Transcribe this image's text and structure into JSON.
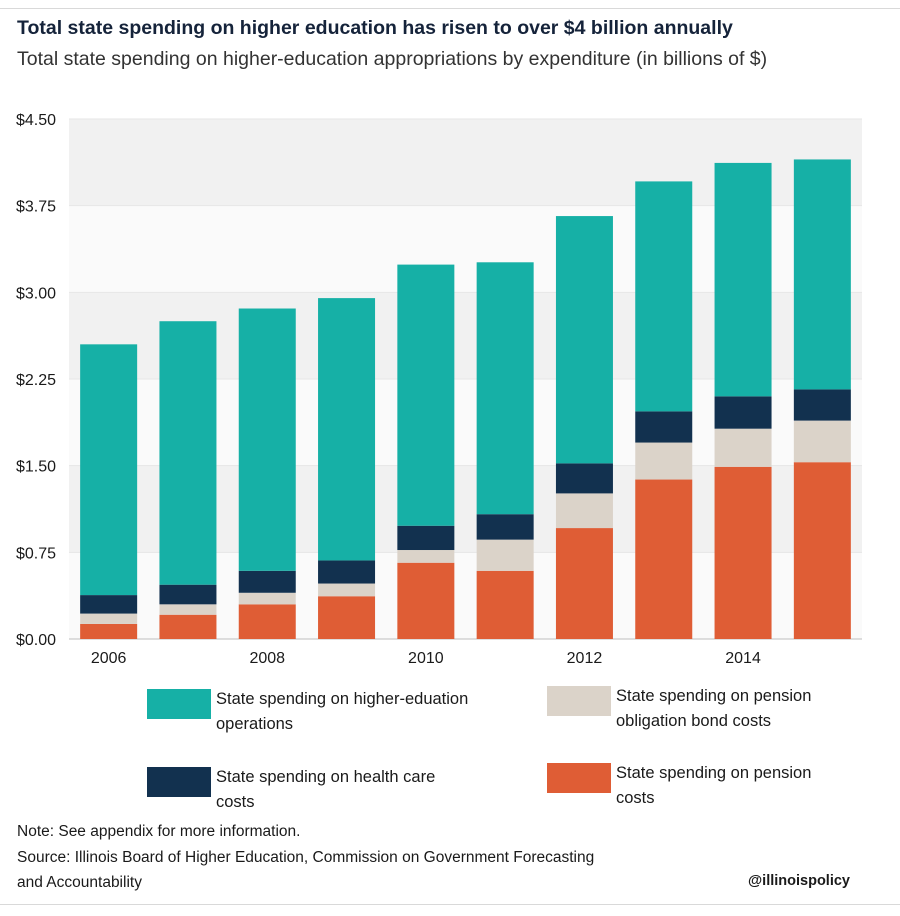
{
  "title": "Total state spending on higher education has risen to over $4 billion annually",
  "subtitle": "Total state spending on higher-education appropriations by expenditure (in billions of $)",
  "colors": {
    "operations": "#16b0a6",
    "health": "#12314f",
    "bonds": "#dbd3c9",
    "pension": "#df5d35",
    "band_dark": "#f1f1f1",
    "band_light": "#fafafa"
  },
  "chart_data": {
    "type": "bar",
    "stacked": true,
    "categories": [
      "2006",
      "2007",
      "2008",
      "2009",
      "2010",
      "2011",
      "2012",
      "2013",
      "2014",
      "2015"
    ],
    "x_tick_labels": [
      "2006",
      "",
      "2008",
      "",
      "2010",
      "",
      "2012",
      "",
      "2014",
      ""
    ],
    "series": [
      {
        "name": "State spending on pension costs",
        "key": "pension",
        "values": [
          0.13,
          0.21,
          0.3,
          0.37,
          0.66,
          0.59,
          0.96,
          1.38,
          1.49,
          1.53
        ]
      },
      {
        "name": "State spending on pension obligation bond costs",
        "key": "bonds",
        "values": [
          0.09,
          0.09,
          0.1,
          0.11,
          0.11,
          0.27,
          0.3,
          0.32,
          0.33,
          0.36
        ]
      },
      {
        "name": "State spending on health care costs",
        "key": "health",
        "values": [
          0.16,
          0.17,
          0.19,
          0.2,
          0.21,
          0.22,
          0.26,
          0.27,
          0.28,
          0.27
        ]
      },
      {
        "name": "State spending on higher-eduation operations",
        "key": "operations",
        "values": [
          2.17,
          2.28,
          2.27,
          2.27,
          2.26,
          2.18,
          2.14,
          1.99,
          2.02,
          1.99
        ]
      }
    ],
    "y_ticks": [
      "$0.00",
      "$0.75",
      "$1.50",
      "$2.25",
      "$3.00",
      "$3.75",
      "$4.50"
    ],
    "ylim": [
      0,
      4.5
    ],
    "grid": "alternating bands"
  },
  "legend": [
    {
      "label": "State spending on higher-eduation\noperations",
      "key": "operations"
    },
    {
      "label": "State spending on pension\nobligation bond costs",
      "key": "bonds"
    },
    {
      "label": "State spending on health care\n costs",
      "key": "health"
    },
    {
      "label": "State spending on pension\ncosts",
      "key": "pension"
    }
  ],
  "note": "Note: See appendix for more information.",
  "source_line1": "Source: Illinois Board of Higher Education, Commission on Government Forecasting",
  "source_line2": "and Accountability",
  "handle": "@illinoispolicy"
}
